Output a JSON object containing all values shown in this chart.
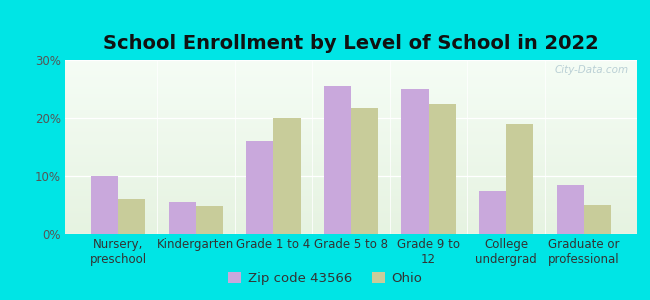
{
  "title": "School Enrollment by Level of School in 2022",
  "categories": [
    "Nursery,\npreschool",
    "Kindergarten",
    "Grade 1 to 4",
    "Grade 5 to 8",
    "Grade 9 to\n12",
    "College\nundergrad",
    "Graduate or\nprofessional"
  ],
  "zip_values": [
    10.0,
    5.5,
    16.0,
    25.5,
    25.0,
    7.5,
    8.5
  ],
  "ohio_values": [
    6.0,
    4.8,
    20.0,
    21.8,
    22.5,
    19.0,
    5.0
  ],
  "zip_color": "#c9a8dc",
  "ohio_color": "#c8cc9a",
  "background_color": "#00e5e5",
  "ylim": [
    0,
    30
  ],
  "yticks": [
    0,
    10,
    20,
    30
  ],
  "ytick_labels": [
    "0%",
    "10%",
    "20%",
    "30%"
  ],
  "legend_zip_label": "Zip code 43566",
  "legend_ohio_label": "Ohio",
  "watermark": "City-Data.com",
  "bar_width": 0.35,
  "title_fontsize": 14,
  "tick_fontsize": 8.5,
  "legend_fontsize": 9.5
}
